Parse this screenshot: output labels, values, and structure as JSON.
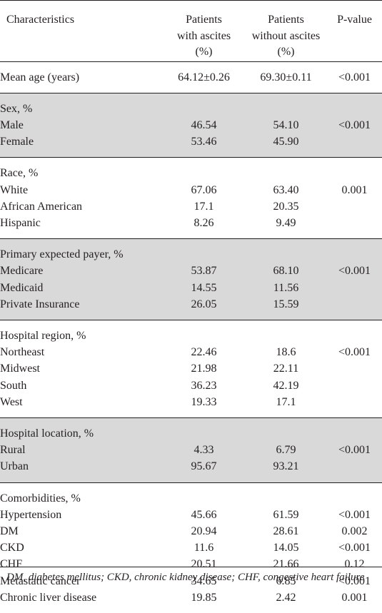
{
  "header": {
    "characteristics": "Characteristics",
    "with_ascites": [
      "Patients",
      "with ascites",
      "(%)"
    ],
    "without_ascites": [
      "Patients",
      "without ascites",
      "(%)"
    ],
    "pvalue": "P-value"
  },
  "groups": [
    {
      "title": "Mean age (years)",
      "title_values": [
        "64.12±0.26",
        "69.30±0.11",
        "<0.001"
      ],
      "rows": []
    },
    {
      "title": "Sex, %",
      "rows": [
        {
          "label": "Male",
          "with": "46.54",
          "without": "54.10",
          "p": "<0.001"
        },
        {
          "label": "Female",
          "with": "53.46",
          "without": "45.90",
          "p": ""
        }
      ]
    },
    {
      "title": "Race, %",
      "rows": [
        {
          "label": "White",
          "with": "67.06",
          "without": "63.40",
          "p": "0.001"
        },
        {
          "label": "African American",
          "with": "17.1",
          "without": "20.35",
          "p": ""
        },
        {
          "label": "Hispanic",
          "with": "8.26",
          "without": "9.49",
          "p": ""
        }
      ]
    },
    {
      "title": "Primary expected payer, %",
      "rows": [
        {
          "label": "Medicare",
          "with": "53.87",
          "without": "68.10",
          "p": "<0.001"
        },
        {
          "label": "Medicaid",
          "with": "14.55",
          "without": "11.56",
          "p": ""
        },
        {
          "label": "Private Insurance",
          "with": "26.05",
          "without": "15.59",
          "p": ""
        }
      ]
    },
    {
      "title": "Hospital region, %",
      "rows": [
        {
          "label": "Northeast",
          "with": "22.46",
          "without": "18.6",
          "p": "<0.001"
        },
        {
          "label": "Midwest",
          "with": "21.98",
          "without": "22.11",
          "p": ""
        },
        {
          "label": "South",
          "with": "36.23",
          "without": "42.19",
          "p": ""
        },
        {
          "label": "West",
          "with": "19.33",
          "without": "17.1",
          "p": ""
        }
      ]
    },
    {
      "title": "Hospital location, %",
      "rows": [
        {
          "label": "Rural",
          "with": "4.33",
          "without": "6.79",
          "p": "<0.001"
        },
        {
          "label": "Urban",
          "with": "95.67",
          "without": "93.21",
          "p": ""
        }
      ]
    },
    {
      "title": "Comorbidities, %",
      "rows": [
        {
          "label": "Hypertension",
          "with": "45.66",
          "without": "61.59",
          "p": "<0.001"
        },
        {
          "label": "DM",
          "with": "20.94",
          "without": "28.61",
          "p": "0.002"
        },
        {
          "label": "CKD",
          "with": "11.6",
          "without": "14.05",
          "p": "<0.001"
        },
        {
          "label": "CHF",
          "with": "20.51",
          "without": "21.66",
          "p": "0.12"
        },
        {
          "label": "Metastatic cancer",
          "with": "34.65",
          "without": "6.85",
          "p": "<0.001"
        },
        {
          "label": "Chronic liver disease",
          "with": "19.85",
          "without": "2.42",
          "p": "0.001"
        }
      ]
    }
  ],
  "footnote": "DM, diabetes mellitus; CKD, chronic kidney disease; CHF, congestive heart failure"
}
